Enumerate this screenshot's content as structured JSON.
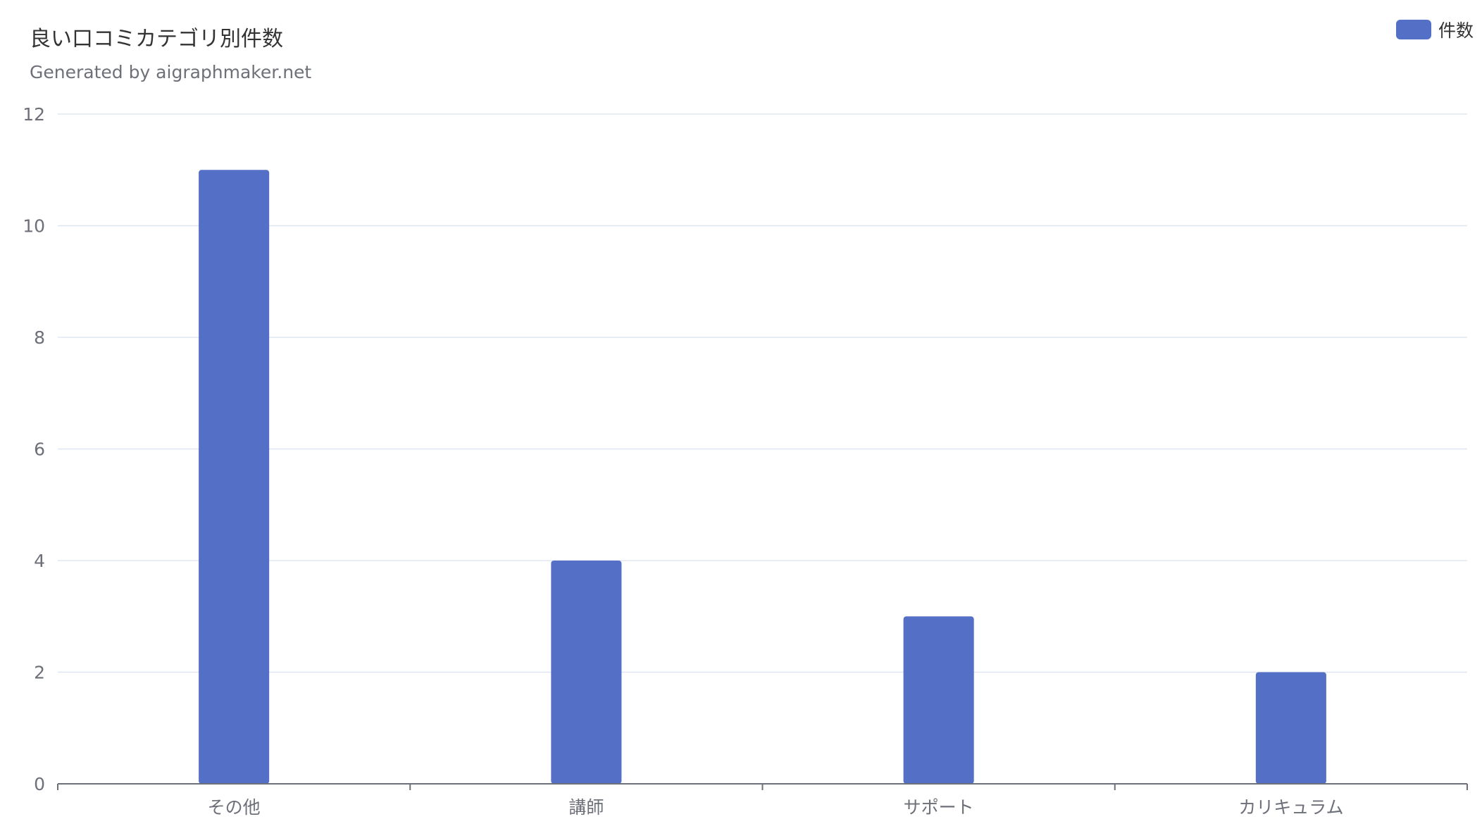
{
  "chart_data": {
    "type": "bar",
    "title": "良い口コミカテゴリ別件数",
    "subtitle": "Generated by aigraphmaker.net",
    "categories": [
      "その他",
      "講師",
      "サポート",
      "カリキュラム"
    ],
    "series": [
      {
        "name": "件数",
        "values": [
          11,
          4,
          3,
          2
        ],
        "color": "#5470c6"
      }
    ],
    "ylim": [
      0,
      12
    ],
    "yticks": [
      0,
      2,
      4,
      6,
      8,
      10,
      12
    ],
    "xlabel": "",
    "ylabel": "",
    "grid": true,
    "legend_position": "top-right"
  }
}
